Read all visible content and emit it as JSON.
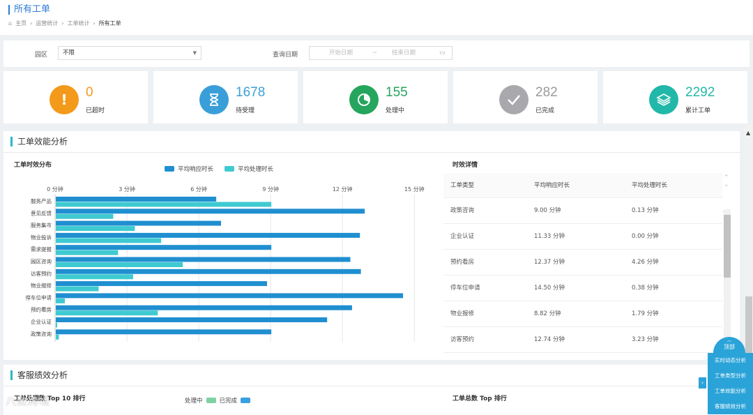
{
  "header": {
    "title": "所有工单",
    "breadcrumb": [
      "主页",
      "运营统计",
      "工单统计",
      "所有工单"
    ]
  },
  "filters": {
    "park_label": "园区",
    "park_value": "不限",
    "date_label": "查询日期",
    "start_placeholder": "开始日期",
    "separator": "~",
    "end_placeholder": "结束日期"
  },
  "stats": [
    {
      "value": "0",
      "label": "已超时",
      "color": "#f39a1b",
      "icon": "exclamation-icon"
    },
    {
      "value": "1678",
      "label": "待受理",
      "color": "#3a9fd8",
      "icon": "hourglass-icon"
    },
    {
      "value": "155",
      "label": "处理中",
      "color": "#25a55d",
      "icon": "clock-icon"
    },
    {
      "value": "282",
      "label": "已完成",
      "color": "#a9a9ad",
      "icon": "check-icon"
    },
    {
      "value": "2292",
      "label": "累计工单",
      "color": "#22b8a9",
      "icon": "layers-icon"
    }
  ],
  "efficiency": {
    "title": "工单效能分析",
    "chart_title": "工单时效分布",
    "detail_title": "时效详情"
  },
  "chart_data": {
    "type": "bar",
    "orientation": "horizontal",
    "title": "工单时效分布",
    "unit": "分钟",
    "x_ticks": [
      "0 分钟",
      "3 分钟",
      "6 分钟",
      "9 分钟",
      "12 分钟",
      "15 分钟"
    ],
    "xlim": [
      0,
      15
    ],
    "categories": [
      "服务产品",
      "意见反馈",
      "服务集市",
      "物业投诉",
      "需求提报",
      "园区咨询",
      "访客预约",
      "物业报修",
      "停车位申请",
      "预约看房",
      "企业认证",
      "政策咨询"
    ],
    "series": [
      {
        "name": "平均响应时长",
        "color": "#1f8fd0",
        "values": [
          6.7,
          12.9,
          6.9,
          12.7,
          9.0,
          12.3,
          12.74,
          8.82,
          14.5,
          12.37,
          11.33,
          9.0
        ]
      },
      {
        "name": "平均处理时长",
        "color": "#3fcad1",
        "values": [
          9.0,
          2.4,
          3.3,
          4.4,
          2.6,
          5.3,
          3.23,
          1.79,
          0.38,
          4.26,
          0.0,
          0.13
        ]
      }
    ]
  },
  "detail_table": {
    "headers": [
      "工单类型",
      "平均响应时长",
      "平均处理时长"
    ],
    "rows": [
      [
        "政策咨询",
        "9.00 分钟",
        "0.13 分钟"
      ],
      [
        "企业认证",
        "11.33 分钟",
        "0.00 分钟"
      ],
      [
        "预约看房",
        "12.37 分钟",
        "4.26 分钟"
      ],
      [
        "停车位申请",
        "14.50 分钟",
        "0.38 分钟"
      ],
      [
        "物业报修",
        "8.82 分钟",
        "1.79 分钟"
      ],
      [
        "访客预约",
        "12.74 分钟",
        "3.23 分钟"
      ]
    ]
  },
  "service": {
    "title": "客服绩效分析",
    "left_title": "工单处理数 Top 10 排行",
    "legend_processing": "处理中",
    "legend_done": "已完成",
    "processing_color": "#7fd1a2",
    "done_color": "#3a9fe0",
    "right_title": "工单总数 Top 排行"
  },
  "float_nav": {
    "top": "顶部",
    "items": [
      "实时动态分析",
      "工单类型分析",
      "工单效能分析",
      "客服绩效分析"
    ]
  },
  "watermark": "八数跨境"
}
